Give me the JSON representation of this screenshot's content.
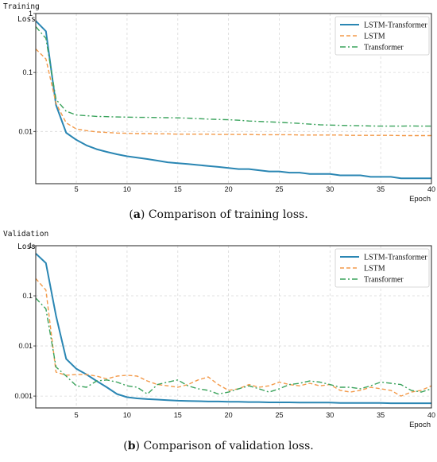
{
  "colors": {
    "lstm_transformer": "#2a86b3",
    "lstm": "#f39a4a",
    "transformer": "#3aa35c",
    "grid": "#d9d9d9"
  },
  "captions": [
    {
      "letter": "a",
      "text": "Comparison of training loss."
    },
    {
      "letter": "b",
      "text": "Comparison of validation loss."
    }
  ],
  "chart_data": [
    {
      "type": "line",
      "title": "",
      "ylabel_line1": "Training",
      "ylabel_line2": "Loss",
      "xlabel": "Epoch",
      "yscale": "log",
      "xlim": [
        1,
        40
      ],
      "ylim": [
        0.0013,
        1
      ],
      "xticks": [
        5,
        10,
        15,
        20,
        25,
        30,
        35,
        40
      ],
      "yticks": [
        {
          "v": 1,
          "label": "1"
        },
        {
          "v": 0.1,
          "label": "0.1"
        },
        {
          "v": 0.01,
          "label": "0.01"
        }
      ],
      "legend_position": "top-right",
      "x": [
        1,
        2,
        3,
        4,
        5,
        6,
        7,
        8,
        9,
        10,
        11,
        12,
        13,
        14,
        15,
        16,
        17,
        18,
        19,
        20,
        21,
        22,
        23,
        24,
        25,
        26,
        27,
        28,
        29,
        30,
        31,
        32,
        33,
        34,
        35,
        36,
        37,
        38,
        39,
        40
      ],
      "series": [
        {
          "name": "LSTM-Transformer",
          "style": "solid",
          "values": [
            0.75,
            0.5,
            0.028,
            0.0095,
            0.0072,
            0.0058,
            0.005,
            0.0045,
            0.0041,
            0.0038,
            0.0036,
            0.0034,
            0.0032,
            0.003,
            0.0029,
            0.0028,
            0.0027,
            0.0026,
            0.0025,
            0.0024,
            0.0023,
            0.0023,
            0.0022,
            0.0021,
            0.0021,
            0.002,
            0.002,
            0.0019,
            0.0019,
            0.0019,
            0.0018,
            0.0018,
            0.0018,
            0.0017,
            0.0017,
            0.0017,
            0.0016,
            0.0016,
            0.0016,
            0.0016
          ]
        },
        {
          "name": "LSTM",
          "style": "dashed",
          "values": [
            0.25,
            0.17,
            0.03,
            0.014,
            0.011,
            0.0103,
            0.0098,
            0.0096,
            0.0094,
            0.0093,
            0.0092,
            0.0092,
            0.0091,
            0.0091,
            0.009,
            0.009,
            0.009,
            0.009,
            0.0089,
            0.0089,
            0.0089,
            0.0089,
            0.0088,
            0.0088,
            0.0088,
            0.0088,
            0.0087,
            0.0087,
            0.0087,
            0.0087,
            0.0087,
            0.0086,
            0.0086,
            0.0086,
            0.0086,
            0.0086,
            0.0085,
            0.0085,
            0.0085,
            0.0085
          ]
        },
        {
          "name": "Transformer",
          "style": "dashdot",
          "values": [
            0.6,
            0.38,
            0.035,
            0.022,
            0.019,
            0.0185,
            0.018,
            0.0178,
            0.0176,
            0.0175,
            0.0174,
            0.0173,
            0.0172,
            0.0171,
            0.017,
            0.0168,
            0.0165,
            0.0162,
            0.016,
            0.0158,
            0.0155,
            0.015,
            0.0148,
            0.0145,
            0.0143,
            0.014,
            0.0137,
            0.0133,
            0.013,
            0.0128,
            0.0127,
            0.0126,
            0.0125,
            0.0124,
            0.0123,
            0.0123,
            0.0123,
            0.0124,
            0.0123,
            0.0123
          ]
        }
      ]
    },
    {
      "type": "line",
      "title": "",
      "ylabel_line1": "Validation",
      "ylabel_line2": "Loss",
      "xlabel": "Epoch",
      "yscale": "log",
      "xlim": [
        1,
        40
      ],
      "ylim": [
        0.00058,
        1
      ],
      "xticks": [
        5,
        10,
        15,
        20,
        25,
        30,
        35,
        40
      ],
      "yticks": [
        {
          "v": 1,
          "label": "1"
        },
        {
          "v": 0.1,
          "label": "0.1"
        },
        {
          "v": 0.01,
          "label": "0.01"
        },
        {
          "v": 0.001,
          "label": "0.001"
        }
      ],
      "legend_position": "top-right",
      "x": [
        1,
        2,
        3,
        4,
        5,
        6,
        7,
        8,
        9,
        10,
        11,
        12,
        13,
        14,
        15,
        16,
        17,
        18,
        19,
        20,
        21,
        22,
        23,
        24,
        25,
        26,
        27,
        28,
        29,
        30,
        31,
        32,
        33,
        34,
        35,
        36,
        37,
        38,
        39,
        40
      ],
      "series": [
        {
          "name": "LSTM-Transformer",
          "style": "solid",
          "values": [
            0.7,
            0.45,
            0.04,
            0.0055,
            0.0035,
            0.0027,
            0.002,
            0.0015,
            0.0011,
            0.00095,
            0.0009,
            0.00087,
            0.00085,
            0.00083,
            0.00081,
            0.0008,
            0.00079,
            0.00078,
            0.00078,
            0.00077,
            0.00077,
            0.00076,
            0.00076,
            0.00075,
            0.00075,
            0.00075,
            0.00074,
            0.00074,
            0.00074,
            0.00074,
            0.00073,
            0.00073,
            0.00073,
            0.00073,
            0.00073,
            0.00072,
            0.00072,
            0.00072,
            0.00072,
            0.00072
          ]
        },
        {
          "name": "LSTM",
          "style": "dashed",
          "values": [
            0.22,
            0.13,
            0.003,
            0.0026,
            0.0027,
            0.0027,
            0.0025,
            0.0022,
            0.0025,
            0.0026,
            0.0025,
            0.002,
            0.0017,
            0.0016,
            0.0015,
            0.0017,
            0.0021,
            0.0024,
            0.0017,
            0.0013,
            0.0014,
            0.0017,
            0.0015,
            0.0016,
            0.0019,
            0.0017,
            0.0016,
            0.0018,
            0.0016,
            0.0017,
            0.0013,
            0.0012,
            0.0013,
            0.0015,
            0.0014,
            0.0013,
            0.001,
            0.0012,
            0.0013,
            0.0016
          ]
        },
        {
          "name": "Transformer",
          "style": "dashdot",
          "values": [
            0.09,
            0.055,
            0.0038,
            0.0025,
            0.0016,
            0.0015,
            0.002,
            0.0021,
            0.0019,
            0.0016,
            0.0015,
            0.0011,
            0.0017,
            0.0019,
            0.0021,
            0.0016,
            0.0014,
            0.0013,
            0.0011,
            0.0012,
            0.0014,
            0.0016,
            0.0014,
            0.0012,
            0.0014,
            0.0017,
            0.0018,
            0.002,
            0.0019,
            0.0017,
            0.0015,
            0.0015,
            0.0014,
            0.0016,
            0.0019,
            0.0018,
            0.0017,
            0.0013,
            0.0012,
            0.0014
          ]
        }
      ]
    }
  ]
}
